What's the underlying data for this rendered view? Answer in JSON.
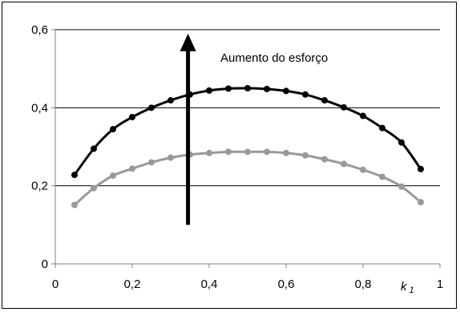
{
  "chart_data": {
    "type": "line",
    "title": "",
    "xlabel": "k",
    "xlabel_subscript": "1",
    "ylabel": "",
    "xlim": [
      0,
      1
    ],
    "ylim": [
      0,
      0.6
    ],
    "x_ticks": [
      0,
      0.2,
      0.4,
      0.6,
      0.8,
      1
    ],
    "x_tick_labels": [
      "0",
      "0,2",
      "0,4",
      "0,6",
      "0,8",
      "1"
    ],
    "y_ticks": [
      0,
      0.2,
      0.4,
      0.6
    ],
    "y_tick_labels": [
      "0",
      "0,2",
      "0,4",
      "0,6"
    ],
    "grid": {
      "horizontal": true,
      "vertical": false
    },
    "legend": "none",
    "annotation": {
      "text": "Aumento do esforço",
      "arrow_x": 0.345,
      "arrow_from": 0.1,
      "arrow_to": 0.59
    },
    "x": [
      0.05,
      0.1,
      0.15,
      0.2,
      0.25,
      0.3,
      0.35,
      0.4,
      0.45,
      0.5,
      0.55,
      0.6,
      0.65,
      0.7,
      0.75,
      0.8,
      0.85,
      0.9,
      0.95
    ],
    "series": [
      {
        "color": "#000000",
        "values": [
          0.228,
          0.295,
          0.345,
          0.376,
          0.4,
          0.419,
          0.434,
          0.444,
          0.449,
          0.45,
          0.448,
          0.443,
          0.434,
          0.419,
          0.401,
          0.379,
          0.348,
          0.311,
          0.243
        ]
      },
      {
        "color": "#999999",
        "values": [
          0.151,
          0.194,
          0.226,
          0.244,
          0.26,
          0.272,
          0.28,
          0.284,
          0.287,
          0.287,
          0.287,
          0.284,
          0.278,
          0.268,
          0.256,
          0.241,
          0.223,
          0.198,
          0.158
        ]
      }
    ]
  }
}
